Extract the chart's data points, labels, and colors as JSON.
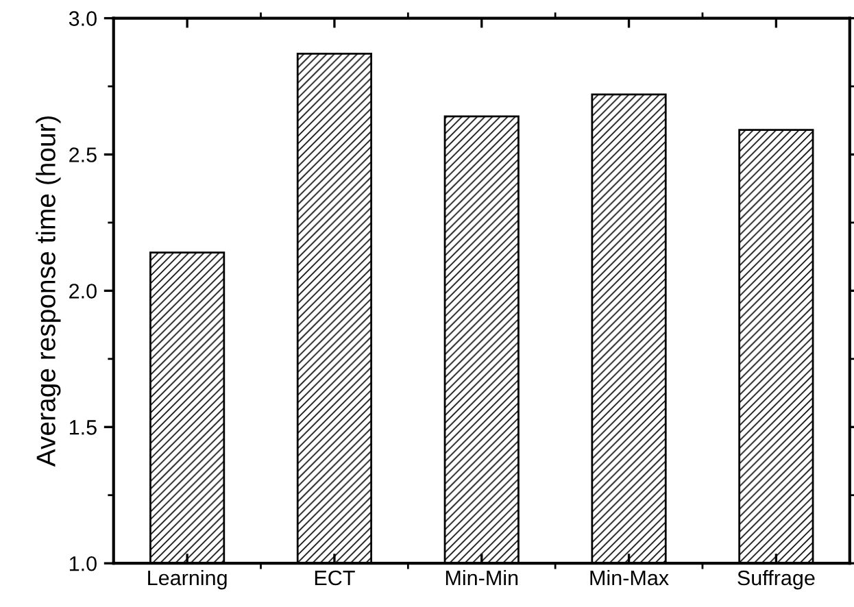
{
  "chart_data": {
    "type": "bar",
    "ylabel": "Average response time (hour)",
    "categories": [
      "Learning",
      "ECT",
      "Min-Min",
      "Min-Max",
      "Suffrage"
    ],
    "values": [
      2.14,
      2.87,
      2.64,
      2.72,
      2.59
    ],
    "color": "#000000",
    "ylim": [
      1.0,
      3.0
    ],
    "yticks": [
      {
        "value": 1.0,
        "label": "1.0"
      },
      {
        "value": 1.5,
        "label": "1.5"
      },
      {
        "value": 2.0,
        "label": "2.0"
      },
      {
        "value": 2.5,
        "label": "2.5"
      },
      {
        "value": 3.0,
        "label": "3.0"
      }
    ],
    "grid": false,
    "legend": false
  }
}
